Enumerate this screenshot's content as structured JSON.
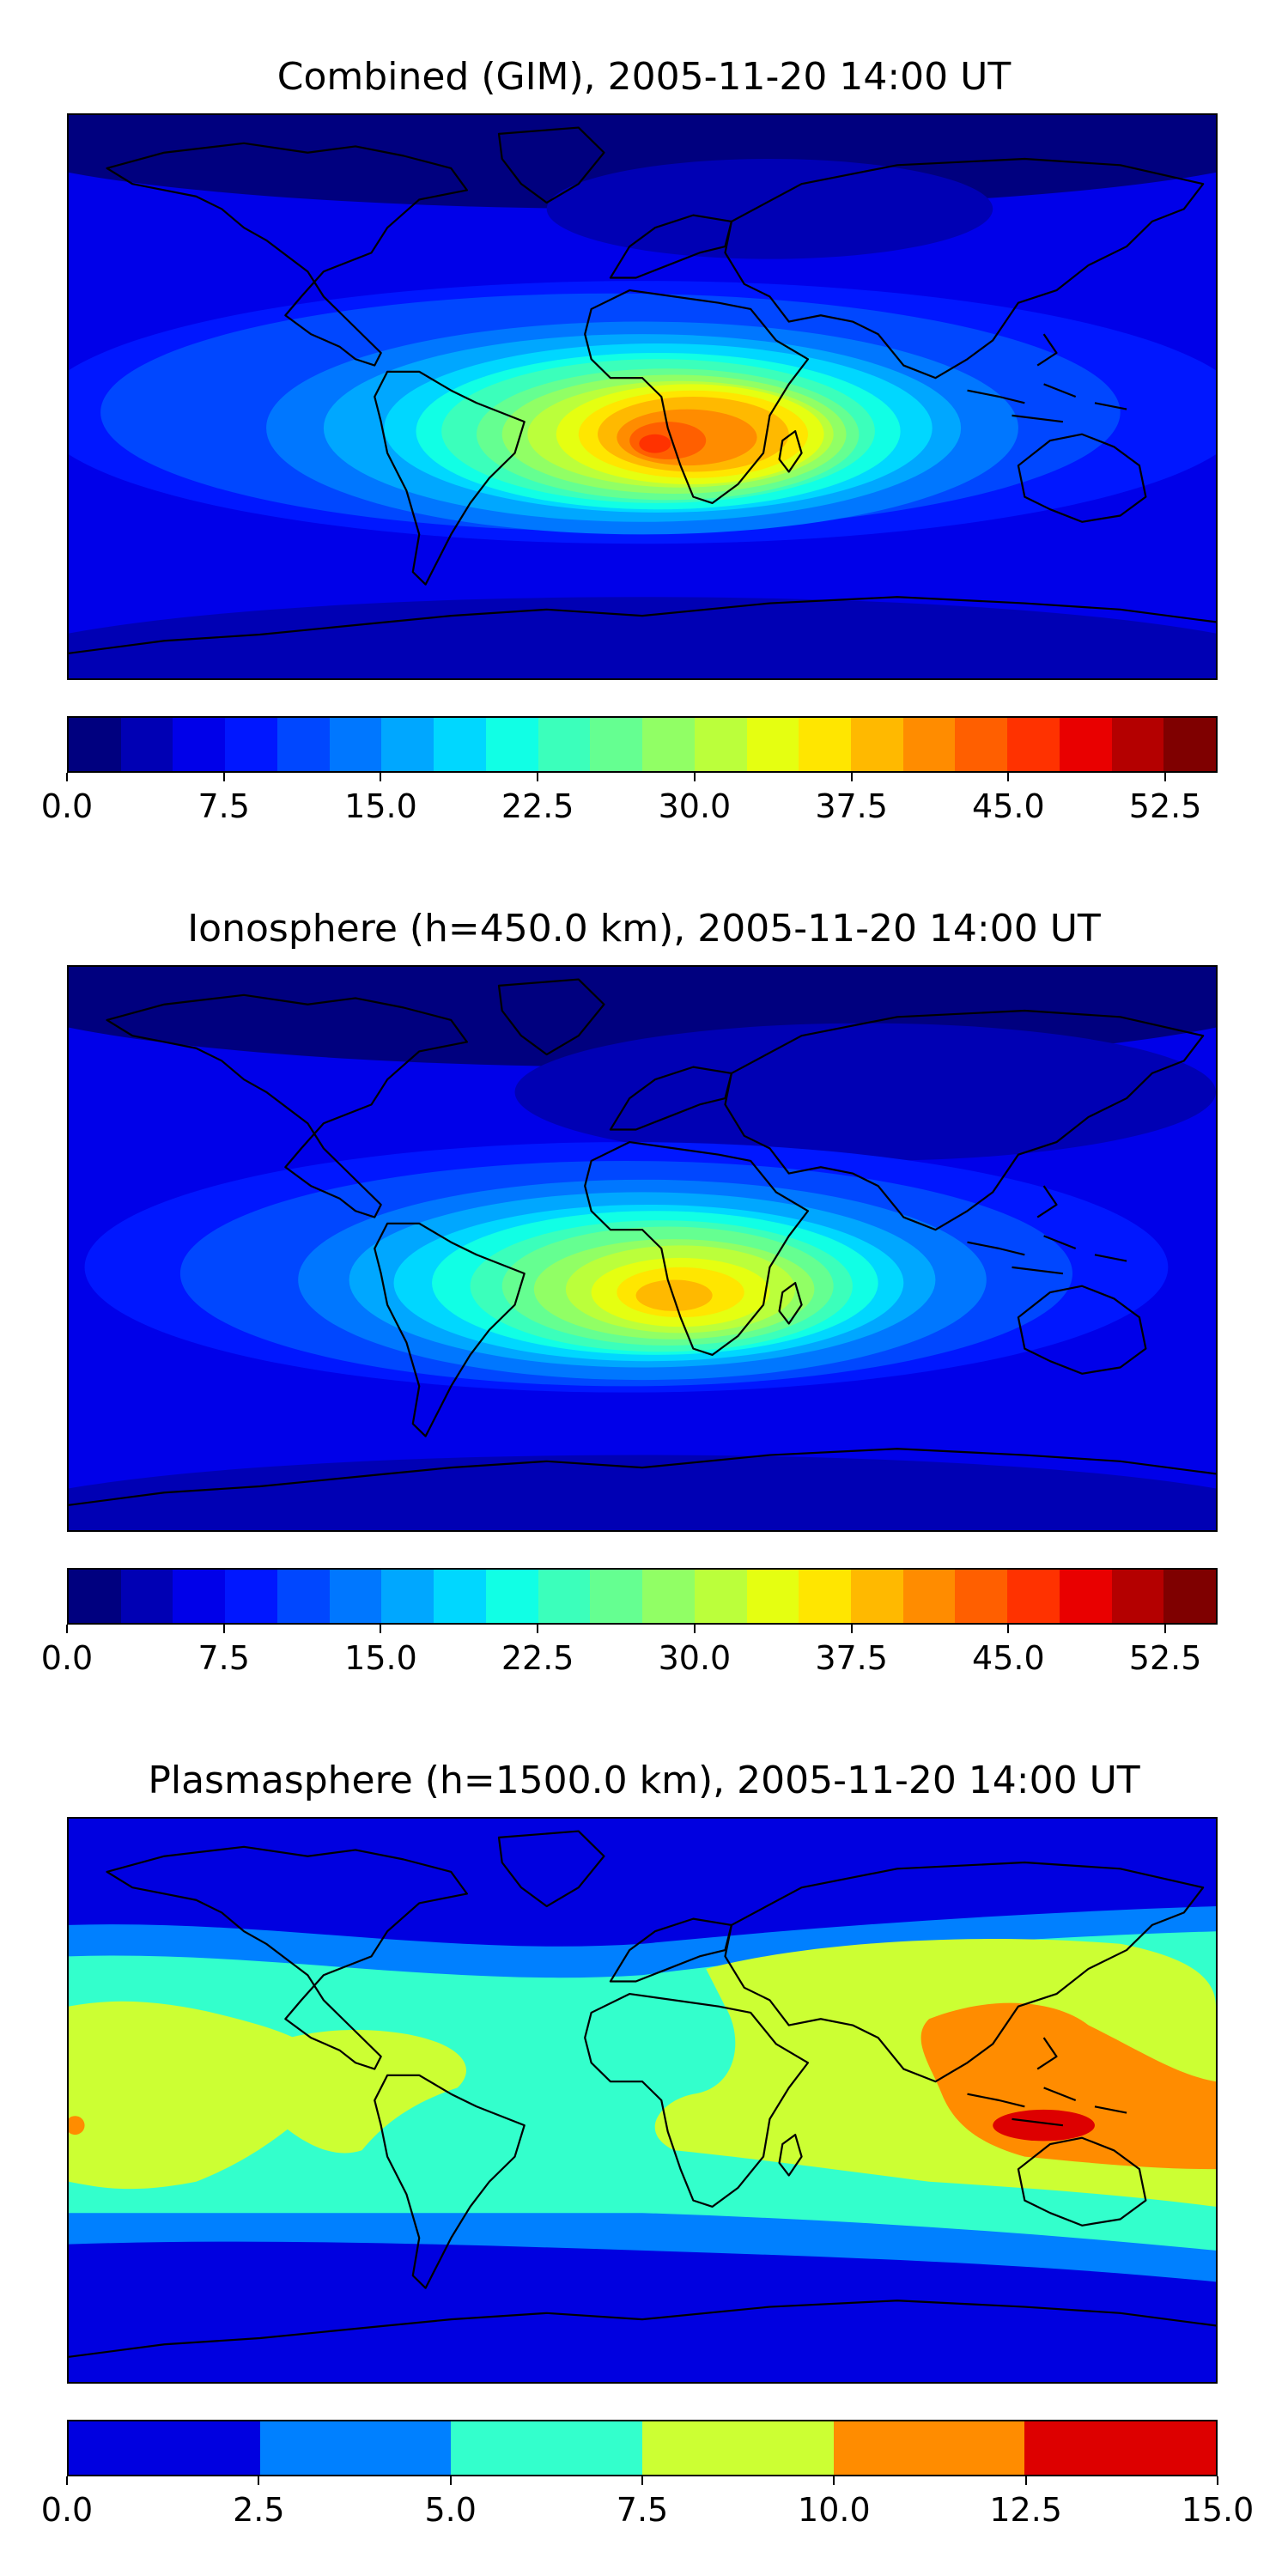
{
  "chart_data": [
    {
      "type": "heatmap",
      "title": "Combined (GIM), 2005-11-20 14:00 UT",
      "xlabel": "",
      "ylabel": "",
      "colorbar": {
        "range": [
          0.0,
          55.0
        ],
        "levels": 22,
        "ticks": [
          "0.0",
          "7.5",
          "15.0",
          "22.5",
          "30.0",
          "37.5",
          "45.0",
          "52.5"
        ],
        "tick_values": [
          0.0,
          7.5,
          15.0,
          22.5,
          30.0,
          37.5,
          45.0,
          52.5
        ],
        "colors": [
          "#00007f",
          "#0000b4",
          "#0000e9",
          "#0017ff",
          "#0047ff",
          "#0077ff",
          "#00a7ff",
          "#00d7ff",
          "#11ffe5",
          "#3bffbb",
          "#65ff91",
          "#91ff65",
          "#bbff3b",
          "#e5ff11",
          "#ffe600",
          "#ffb900",
          "#ff8c00",
          "#ff5f00",
          "#ff3200",
          "#e90000",
          "#b40000",
          "#7f0000"
        ]
      },
      "field_peak": {
        "value": 47.0,
        "region": "southern Africa / South Atlantic"
      }
    },
    {
      "type": "heatmap",
      "title": "Ionosphere  (h=450.0 km), 2005-11-20 14:00 UT",
      "xlabel": "",
      "ylabel": "",
      "colorbar": {
        "range": [
          0.0,
          55.0
        ],
        "levels": 22,
        "ticks": [
          "0.0",
          "7.5",
          "15.0",
          "22.5",
          "30.0",
          "37.5",
          "45.0",
          "52.5"
        ],
        "tick_values": [
          0.0,
          7.5,
          15.0,
          22.5,
          30.0,
          37.5,
          45.0,
          52.5
        ],
        "colors": [
          "#00007f",
          "#0000b4",
          "#0000e9",
          "#0017ff",
          "#0047ff",
          "#0077ff",
          "#00a7ff",
          "#00d7ff",
          "#11ffe5",
          "#3bffbb",
          "#65ff91",
          "#91ff65",
          "#bbff3b",
          "#e5ff11",
          "#ffe600",
          "#ffb900",
          "#ff8c00",
          "#ff5f00",
          "#ff3200",
          "#e90000",
          "#b40000",
          "#7f0000"
        ]
      },
      "field_peak": {
        "value": 40.0,
        "region": "southern Africa"
      }
    },
    {
      "type": "heatmap",
      "title": "Plasmasphere (h=1500.0 km), 2005-11-20 14:00 UT",
      "xlabel": "",
      "ylabel": "",
      "colorbar": {
        "range": [
          0.0,
          15.0
        ],
        "levels": 6,
        "ticks": [
          "0.0",
          "2.5",
          "5.0",
          "7.5",
          "10.0",
          "12.5",
          "15.0"
        ],
        "tick_values": [
          0.0,
          2.5,
          5.0,
          7.5,
          10.0,
          12.5,
          15.0
        ],
        "colors": [
          "#0000e0",
          "#0080ff",
          "#33ffcc",
          "#ccff33",
          "#ff8c00",
          "#dd0000"
        ]
      },
      "field_peak": {
        "value": 13.5,
        "region": "Indonesia"
      }
    }
  ]
}
